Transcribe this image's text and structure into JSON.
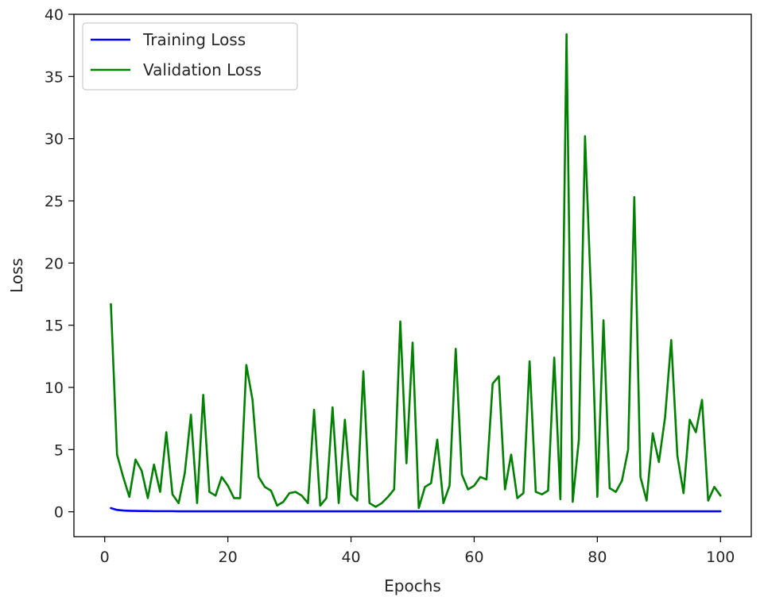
{
  "chart_data": {
    "type": "line",
    "xlabel": "Epochs",
    "ylabel": "Loss",
    "xlim": [
      -5,
      105
    ],
    "ylim": [
      -2,
      40
    ],
    "xticks": [
      0,
      20,
      40,
      60,
      80,
      100
    ],
    "yticks": [
      0,
      5,
      10,
      15,
      20,
      25,
      30,
      35,
      40
    ],
    "grid": false,
    "legend_position": "top-left",
    "series": [
      {
        "name": "Training Loss",
        "color": "#0000ff",
        "x": [
          1,
          2,
          3,
          4,
          5,
          6,
          7,
          8,
          9,
          10,
          11,
          12,
          13,
          14,
          15,
          16,
          17,
          18,
          19,
          20,
          21,
          22,
          23,
          24,
          25,
          26,
          27,
          28,
          29,
          30,
          31,
          32,
          33,
          34,
          35,
          36,
          37,
          38,
          39,
          40,
          41,
          42,
          43,
          44,
          45,
          46,
          47,
          48,
          49,
          50,
          51,
          52,
          53,
          54,
          55,
          56,
          57,
          58,
          59,
          60,
          61,
          62,
          63,
          64,
          65,
          66,
          67,
          68,
          69,
          70,
          71,
          72,
          73,
          74,
          75,
          76,
          77,
          78,
          79,
          80,
          81,
          82,
          83,
          84,
          85,
          86,
          87,
          88,
          89,
          90,
          91,
          92,
          93,
          94,
          95,
          96,
          97,
          98,
          99,
          100
        ],
        "values": [
          0.3,
          0.15,
          0.1,
          0.08,
          0.07,
          0.06,
          0.06,
          0.05,
          0.05,
          0.05,
          0.05,
          0.04,
          0.04,
          0.04,
          0.04,
          0.04,
          0.04,
          0.04,
          0.04,
          0.04,
          0.04,
          0.04,
          0.04,
          0.04,
          0.04,
          0.04,
          0.04,
          0.04,
          0.04,
          0.04,
          0.04,
          0.04,
          0.04,
          0.04,
          0.04,
          0.04,
          0.04,
          0.04,
          0.04,
          0.04,
          0.04,
          0.04,
          0.04,
          0.04,
          0.04,
          0.04,
          0.04,
          0.04,
          0.04,
          0.04,
          0.04,
          0.04,
          0.04,
          0.04,
          0.04,
          0.04,
          0.04,
          0.04,
          0.04,
          0.04,
          0.04,
          0.04,
          0.04,
          0.04,
          0.04,
          0.04,
          0.04,
          0.04,
          0.04,
          0.04,
          0.04,
          0.04,
          0.04,
          0.04,
          0.04,
          0.04,
          0.04,
          0.04,
          0.04,
          0.04,
          0.04,
          0.04,
          0.04,
          0.04,
          0.04,
          0.04,
          0.04,
          0.04,
          0.04,
          0.04,
          0.04,
          0.04,
          0.04,
          0.04,
          0.04,
          0.04,
          0.04,
          0.04,
          0.04,
          0.04
        ]
      },
      {
        "name": "Validation Loss",
        "color": "#008000",
        "x": [
          1,
          2,
          3,
          4,
          5,
          6,
          7,
          8,
          9,
          10,
          11,
          12,
          13,
          14,
          15,
          16,
          17,
          18,
          19,
          20,
          21,
          22,
          23,
          24,
          25,
          26,
          27,
          28,
          29,
          30,
          31,
          32,
          33,
          34,
          35,
          36,
          37,
          38,
          39,
          40,
          41,
          42,
          43,
          44,
          45,
          46,
          47,
          48,
          49,
          50,
          51,
          52,
          53,
          54,
          55,
          56,
          57,
          58,
          59,
          60,
          61,
          62,
          63,
          64,
          65,
          66,
          67,
          68,
          69,
          70,
          71,
          72,
          73,
          74,
          75,
          76,
          77,
          78,
          79,
          80,
          81,
          82,
          83,
          84,
          85,
          86,
          87,
          88,
          89,
          90,
          91,
          92,
          93,
          94,
          95,
          96,
          97,
          98,
          99,
          100
        ],
        "values": [
          16.7,
          4.6,
          2.8,
          1.2,
          4.2,
          3.3,
          1.1,
          3.8,
          1.6,
          6.4,
          1.4,
          0.7,
          3.1,
          7.8,
          0.7,
          9.4,
          1.6,
          1.3,
          2.8,
          2.1,
          1.1,
          1.1,
          11.8,
          9.0,
          2.8,
          2.0,
          1.7,
          0.5,
          0.8,
          1.5,
          1.6,
          1.3,
          0.7,
          8.2,
          0.5,
          1.1,
          8.4,
          0.7,
          7.4,
          1.4,
          0.9,
          11.3,
          0.7,
          0.4,
          0.7,
          1.2,
          1.8,
          15.3,
          3.9,
          13.6,
          0.3,
          2.0,
          2.3,
          5.8,
          0.7,
          2.1,
          13.1,
          3.0,
          1.8,
          2.1,
          2.8,
          2.6,
          10.3,
          10.9,
          1.8,
          4.6,
          1.1,
          1.5,
          12.1,
          1.6,
          1.4,
          1.7,
          12.4,
          1.0,
          38.4,
          0.8,
          5.8,
          30.2,
          17.1,
          1.2,
          15.4,
          1.9,
          1.6,
          2.5,
          5.0,
          25.3,
          2.8,
          0.9,
          6.3,
          4.0,
          7.6,
          13.8,
          4.5,
          1.5,
          7.4,
          6.4,
          9.0,
          0.9,
          2.0,
          1.3
        ]
      }
    ]
  }
}
